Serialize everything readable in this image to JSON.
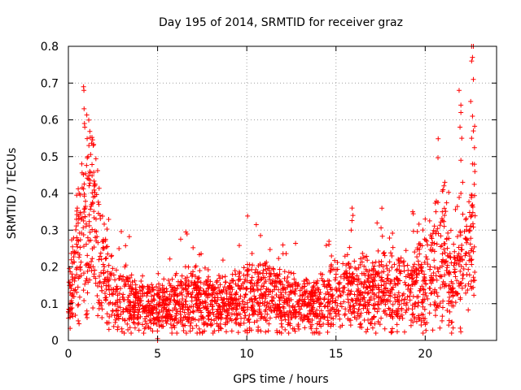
{
  "chart_data": {
    "type": "scatter",
    "title": "Day 195 of 2014, SRMTID for receiver graz",
    "xlabel": "GPS time / hours",
    "ylabel": "SRMTID / TECUs",
    "xlim": [
      0,
      24
    ],
    "ylim": [
      0,
      0.8
    ],
    "x_ticks": [
      0,
      5,
      10,
      15,
      20
    ],
    "x_tick_labels": [
      "0",
      "5",
      "10",
      "15",
      "20"
    ],
    "y_ticks": [
      0,
      0.1,
      0.2,
      0.3,
      0.4,
      0.5,
      0.6,
      0.7,
      0.8
    ],
    "y_tick_labels": [
      "0",
      "0.1",
      "0.2",
      "0.3",
      "0.4",
      "0.5",
      "0.6",
      "0.7",
      "0.8"
    ],
    "grid": true,
    "marker": "plus",
    "color": "#ff0000",
    "envelope": [
      [
        0.0,
        0.13
      ],
      [
        0.3,
        0.18
      ],
      [
        0.6,
        0.24
      ],
      [
        0.9,
        0.3
      ],
      [
        1.2,
        0.32
      ],
      [
        1.5,
        0.28
      ],
      [
        1.8,
        0.22
      ],
      [
        2.1,
        0.16
      ],
      [
        2.4,
        0.12
      ],
      [
        3.0,
        0.11
      ],
      [
        4.0,
        0.1
      ],
      [
        5.0,
        0.09
      ],
      [
        6.0,
        0.1
      ],
      [
        7.0,
        0.11
      ],
      [
        8.0,
        0.1
      ],
      [
        9.0,
        0.1
      ],
      [
        10.0,
        0.12
      ],
      [
        11.0,
        0.12
      ],
      [
        12.0,
        0.11
      ],
      [
        13.0,
        0.1
      ],
      [
        14.0,
        0.1
      ],
      [
        15.0,
        0.12
      ],
      [
        16.0,
        0.13
      ],
      [
        17.0,
        0.12
      ],
      [
        18.0,
        0.14
      ],
      [
        19.0,
        0.13
      ],
      [
        20.0,
        0.16
      ],
      [
        20.5,
        0.2
      ],
      [
        21.0,
        0.24
      ],
      [
        21.5,
        0.16
      ],
      [
        22.0,
        0.18
      ],
      [
        22.5,
        0.22
      ],
      [
        22.8,
        0.3
      ]
    ],
    "highlights": [
      [
        0.85,
        0.69
      ],
      [
        0.87,
        0.68
      ],
      [
        0.88,
        0.63
      ],
      [
        0.9,
        0.59
      ],
      [
        0.92,
        0.58
      ],
      [
        1.15,
        0.53
      ],
      [
        1.1,
        0.5
      ],
      [
        1.2,
        0.46
      ],
      [
        0.75,
        0.48
      ],
      [
        0.6,
        0.4
      ],
      [
        1.4,
        0.39
      ],
      [
        1.55,
        0.33
      ],
      [
        1.3,
        0.37
      ],
      [
        0.5,
        0.36
      ],
      [
        1.45,
        0.42
      ],
      [
        15.9,
        0.36
      ],
      [
        15.95,
        0.34
      ],
      [
        15.85,
        0.3
      ],
      [
        19.3,
        0.35
      ],
      [
        20.0,
        0.33
      ],
      [
        20.6,
        0.35
      ],
      [
        21.1,
        0.43
      ],
      [
        21.0,
        0.41
      ],
      [
        21.9,
        0.68
      ],
      [
        22.0,
        0.64
      ],
      [
        22.0,
        0.62
      ],
      [
        21.95,
        0.58
      ],
      [
        22.05,
        0.55
      ],
      [
        22.0,
        0.49
      ],
      [
        22.1,
        0.43
      ],
      [
        22.0,
        0.4
      ],
      [
        22.6,
        0.8
      ],
      [
        22.7,
        0.8
      ],
      [
        22.65,
        0.77
      ],
      [
        22.6,
        0.76
      ],
      [
        22.7,
        0.71
      ],
      [
        22.55,
        0.65
      ],
      [
        22.65,
        0.61
      ],
      [
        22.6,
        0.55
      ],
      [
        22.65,
        0.48
      ],
      [
        22.6,
        0.34
      ],
      [
        22.55,
        0.31
      ],
      [
        22.7,
        0.57
      ],
      [
        5.0,
        0.0
      ],
      [
        5.0,
        0.005
      ],
      [
        1.95,
        0.27
      ],
      [
        2.0,
        0.25
      ]
    ]
  }
}
